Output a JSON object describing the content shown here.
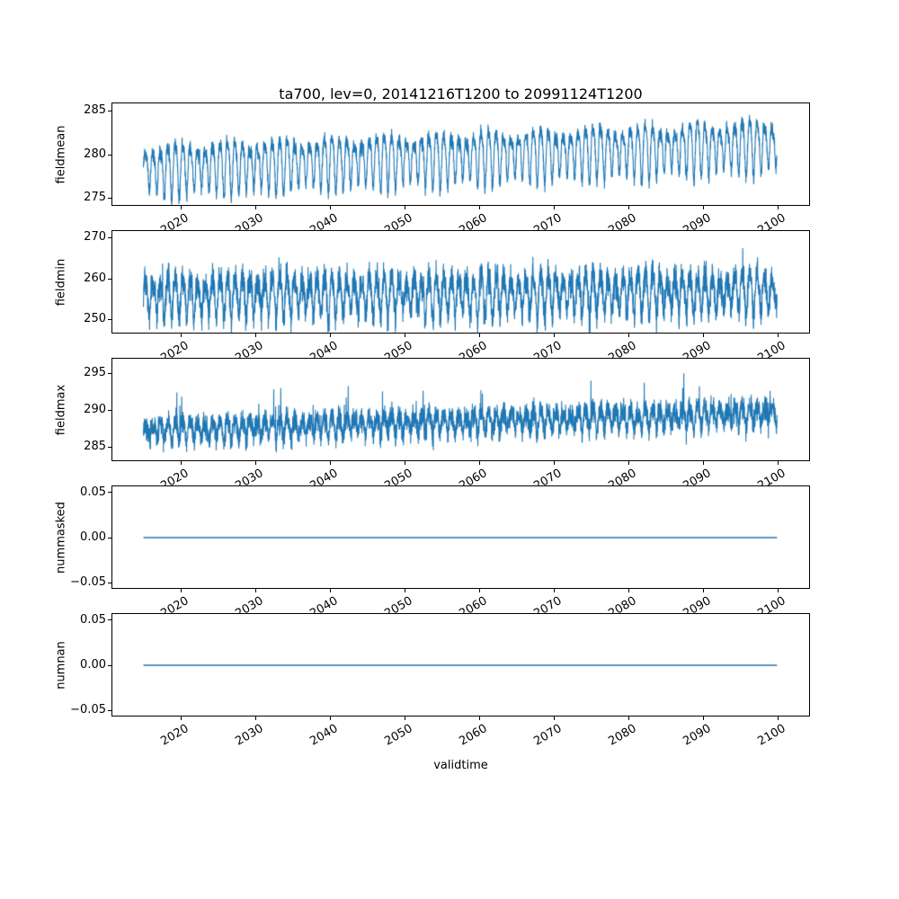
{
  "figure": {
    "title": "ta700, lev=0, 20141216T1200 to 20991124T1200",
    "xlabel": "validtime",
    "line_color": "#1f77b4",
    "background": "#ffffff",
    "spine_color": "#000000"
  },
  "x_axis": {
    "xlim": [
      2010.8,
      2104.2
    ],
    "ticks": [
      {
        "value": 2020,
        "label": "2020"
      },
      {
        "value": 2030,
        "label": "2030"
      },
      {
        "value": 2040,
        "label": "2040"
      },
      {
        "value": 2050,
        "label": "2050"
      },
      {
        "value": 2060,
        "label": "2060"
      },
      {
        "value": 2070,
        "label": "2070"
      },
      {
        "value": 2080,
        "label": "2080"
      },
      {
        "value": 2090,
        "label": "2090"
      },
      {
        "value": 2100,
        "label": "2100"
      }
    ]
  },
  "chart_data": [
    {
      "type": "line",
      "ylabel": "fieldmean",
      "ylim": [
        274.2,
        285.8
      ],
      "yticks": [
        {
          "value": 285,
          "label": "285"
        },
        {
          "value": 280,
          "label": "280"
        },
        {
          "value": 275,
          "label": "275"
        }
      ],
      "x_start": 2014.96,
      "x_end": 2099.9,
      "signal": {
        "kind": "seasonal",
        "points": 4400,
        "seed": 11,
        "base_start": 278.4,
        "base_end": 281.2,
        "seasonal_amp": 2.6,
        "harmonic2_amp": 0.7,
        "noise_amp": 0.7,
        "spike_prob": 0,
        "spike_amp": 0
      }
    },
    {
      "type": "line",
      "ylabel": "fieldmin",
      "ylim": [
        246.8,
        271.6
      ],
      "yticks": [
        {
          "value": 270,
          "label": "270"
        },
        {
          "value": 260,
          "label": "260"
        },
        {
          "value": 250,
          "label": "250"
        }
      ],
      "x_start": 2014.96,
      "x_end": 2099.9,
      "signal": {
        "kind": "seasonal",
        "points": 4400,
        "seed": 23,
        "base_start": 255.8,
        "base_end": 256.8,
        "seasonal_amp": 4.4,
        "harmonic2_amp": 1.0,
        "noise_amp": 3.0,
        "spike_prob": 0.01,
        "spike_amp": 4.5
      }
    },
    {
      "type": "line",
      "ylabel": "fieldmax",
      "ylim": [
        283.2,
        297.0
      ],
      "yticks": [
        {
          "value": 295,
          "label": "295"
        },
        {
          "value": 290,
          "label": "290"
        },
        {
          "value": 285,
          "label": "285"
        }
      ],
      "x_start": 2014.96,
      "x_end": 2099.9,
      "signal": {
        "kind": "seasonal",
        "points": 4400,
        "seed": 37,
        "base_start": 287.2,
        "base_end": 289.6,
        "seasonal_amp": 1.2,
        "harmonic2_amp": 0.4,
        "noise_amp": 1.3,
        "spike_prob": 0.012,
        "spike_amp": 4.5
      }
    },
    {
      "type": "line",
      "ylabel": "nummasked",
      "ylim": [
        -0.0565,
        0.0565
      ],
      "yticks": [
        {
          "value": 0.05,
          "label": "0.05"
        },
        {
          "value": 0.0,
          "label": "0.00"
        },
        {
          "value": -0.05,
          "label": "−0.05"
        }
      ],
      "x_start": 2014.96,
      "x_end": 2099.9,
      "signal": {
        "kind": "constant",
        "value": 0.0
      }
    },
    {
      "type": "line",
      "ylabel": "numnan",
      "ylim": [
        -0.0565,
        0.0565
      ],
      "yticks": [
        {
          "value": 0.05,
          "label": "0.05"
        },
        {
          "value": 0.0,
          "label": "0.00"
        },
        {
          "value": -0.05,
          "label": "−0.05"
        }
      ],
      "x_start": 2014.96,
      "x_end": 2099.9,
      "signal": {
        "kind": "constant",
        "value": 0.0
      }
    }
  ]
}
